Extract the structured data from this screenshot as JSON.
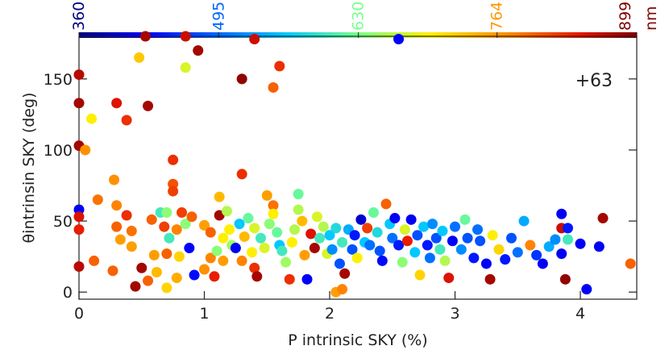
{
  "chart_data": {
    "type": "scatter",
    "x_label": "P intrinsic SKY (%)",
    "y_label": "θintrinsin SKY (deg)",
    "annotation": "+63",
    "xlim": [
      0,
      4.45
    ],
    "xticks": [
      0,
      1,
      2,
      3,
      4
    ],
    "ylim": [
      -5,
      180
    ],
    "yticks": [
      0,
      50,
      100,
      150
    ],
    "colormap": "jet",
    "clim": [
      360,
      899
    ],
    "cticks": [
      360,
      495,
      630,
      764,
      899
    ],
    "c_label": "nm",
    "x": [
      0,
      0,
      0,
      0.05,
      0.1,
      0.3,
      0.38,
      0.48,
      0.55,
      0.53,
      0.85,
      0.95,
      0.85,
      1.3,
      1.4,
      1.55,
      1.6,
      2.55,
      0.75,
      0.75,
      0.75,
      1.3,
      0,
      0,
      0,
      0,
      0.15,
      0.12,
      0.28,
      0.3,
      0.3,
      0.33,
      0.27,
      0.38,
      0.42,
      0.42,
      0.45,
      0.5,
      0.55,
      0.58,
      0.6,
      0.62,
      0.65,
      0.7,
      0.72,
      0.7,
      0.7,
      0.68,
      0.78,
      0.78,
      0.8,
      0.82,
      0.85,
      0.88,
      0.9,
      0.92,
      1.0,
      1.0,
      1.05,
      1.05,
      1.08,
      1.1,
      1.12,
      1.12,
      1.15,
      1.15,
      1.18,
      1.2,
      1.22,
      1.25,
      1.28,
      1.3,
      1.32,
      1.35,
      1.38,
      1.4,
      1.4,
      1.42,
      1.45,
      1.48,
      1.5,
      1.52,
      1.55,
      1.55,
      1.58,
      1.6,
      1.62,
      1.65,
      1.68,
      1.7,
      1.72,
      1.75,
      1.75,
      1.78,
      1.8,
      1.82,
      1.85,
      1.88,
      1.9,
      1.92,
      1.95,
      1.98,
      2.0,
      2.02,
      2.05,
      2.08,
      2.1,
      2.12,
      2.15,
      2.18,
      2.2,
      2.22,
      2.25,
      2.28,
      2.3,
      2.32,
      2.35,
      2.38,
      2.4,
      2.42,
      2.45,
      2.48,
      2.5,
      2.52,
      2.55,
      2.58,
      2.6,
      2.62,
      2.65,
      2.68,
      2.7,
      2.72,
      2.75,
      2.78,
      2.8,
      2.82,
      2.85,
      2.88,
      2.9,
      2.92,
      2.95,
      2.98,
      3.0,
      3.05,
      3.08,
      3.1,
      3.15,
      3.18,
      3.2,
      3.25,
      3.28,
      3.3,
      3.35,
      3.4,
      3.45,
      3.5,
      3.55,
      3.6,
      3.65,
      3.7,
      3.75,
      3.8,
      3.85,
      3.85,
      3.88,
      3.9,
      4.0,
      4.05,
      4.15,
      4.18,
      4.4,
      3.9,
      3.85,
      2.05,
      2.1
    ],
    "values": [
      153,
      133,
      103,
      100,
      122,
      133,
      121,
      165,
      131,
      180,
      180,
      170,
      158,
      150,
      178,
      144,
      159,
      178,
      93,
      76,
      71,
      83,
      58,
      53,
      44,
      18,
      65,
      22,
      79,
      61,
      46,
      37,
      15,
      54,
      43,
      32,
      4,
      17,
      8,
      51,
      26,
      14,
      56,
      56,
      38,
      27,
      3,
      46,
      44,
      10,
      25,
      56,
      48,
      31,
      53,
      12,
      47,
      16,
      42,
      24,
      11,
      29,
      54,
      67,
      38,
      22,
      57,
      44,
      33,
      31,
      48,
      22,
      39,
      52,
      28,
      45,
      17,
      11,
      38,
      31,
      68,
      48,
      61,
      55,
      42,
      33,
      29,
      21,
      9,
      35,
      44,
      69,
      58,
      50,
      26,
      9,
      41,
      31,
      53,
      38,
      46,
      27,
      40,
      30,
      45,
      20,
      35,
      13,
      44,
      30,
      40,
      24,
      51,
      35,
      45,
      33,
      56,
      42,
      29,
      22,
      62,
      48,
      38,
      52,
      33,
      21,
      44,
      36,
      51,
      28,
      40,
      12,
      46,
      33,
      24,
      48,
      38,
      30,
      43,
      22,
      10,
      36,
      46,
      30,
      51,
      38,
      24,
      44,
      36,
      20,
      9,
      40,
      30,
      23,
      38,
      28,
      50,
      33,
      26,
      20,
      32,
      37,
      55,
      45,
      9,
      37,
      34,
      2,
      32,
      52,
      20,
      45,
      27,
      0,
      2
    ],
    "wavelength": [
      870,
      880,
      880,
      770,
      700,
      850,
      830,
      730,
      880,
      880,
      860,
      880,
      680,
      890,
      860,
      800,
      830,
      420,
      830,
      810,
      820,
      830,
      420,
      850,
      840,
      870,
      790,
      800,
      770,
      780,
      800,
      760,
      800,
      830,
      790,
      760,
      880,
      880,
      800,
      800,
      760,
      740,
      600,
      640,
      600,
      800,
      720,
      820,
      780,
      750,
      720,
      820,
      640,
      420,
      800,
      430,
      760,
      770,
      800,
      780,
      840,
      640,
      880,
      740,
      700,
      760,
      660,
      700,
      650,
      420,
      560,
      780,
      740,
      620,
      700,
      680,
      830,
      880,
      600,
      680,
      760,
      640,
      790,
      700,
      620,
      560,
      600,
      650,
      830,
      700,
      660,
      620,
      660,
      740,
      760,
      420,
      850,
      880,
      680,
      600,
      660,
      680,
      560,
      520,
      580,
      480,
      600,
      880,
      540,
      480,
      440,
      700,
      400,
      560,
      820,
      500,
      620,
      580,
      480,
      430,
      800,
      560,
      500,
      420,
      440,
      640,
      680,
      840,
      420,
      560,
      480,
      720,
      560,
      440,
      500,
      520,
      480,
      600,
      560,
      660,
      850,
      420,
      500,
      520,
      620,
      480,
      440,
      500,
      480,
      420,
      880,
      700,
      720,
      440,
      480,
      500,
      540,
      780,
      460,
      420,
      540,
      520,
      420,
      860,
      890,
      600,
      420,
      420,
      420,
      880,
      800,
      440,
      420,
      760,
      780
    ]
  }
}
